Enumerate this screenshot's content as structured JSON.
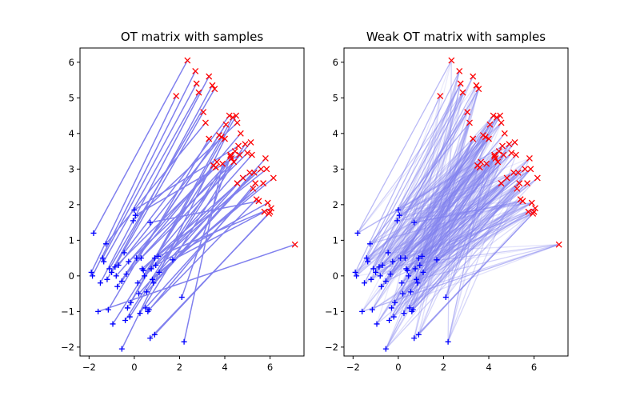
{
  "chart_data": [
    {
      "type": "scatter",
      "title": "OT matrix with samples",
      "xlabel": "",
      "ylabel": "",
      "xlim": [
        -2.4,
        7.5
      ],
      "ylim": [
        -2.25,
        6.4
      ],
      "xticks": [
        -2,
        0,
        2,
        4,
        6
      ],
      "xtick_labels": [
        "−2",
        "0",
        "2",
        "4",
        "6"
      ],
      "yticks": [
        -2,
        -1,
        0,
        1,
        2,
        3,
        4,
        5,
        6
      ],
      "ytick_labels": [
        "−2",
        "−1",
        "0",
        "1",
        "2",
        "3",
        "4",
        "5",
        "6"
      ],
      "grid": false,
      "mapping": "one-to-one",
      "line_color": "#8080ee",
      "source_color": "#0000ff",
      "target_color": "#ff0000",
      "source_marker": "plus",
      "target_marker": "x"
    },
    {
      "type": "scatter",
      "title": "Weak OT matrix with samples",
      "xlabel": "",
      "ylabel": "",
      "xlim": [
        -2.4,
        7.5
      ],
      "ylim": [
        -2.25,
        6.4
      ],
      "xticks": [
        -2,
        0,
        2,
        4,
        6
      ],
      "xtick_labels": [
        "−2",
        "0",
        "2",
        "4",
        "6"
      ],
      "yticks": [
        -2,
        -1,
        0,
        1,
        2,
        3,
        4,
        5,
        6
      ],
      "ytick_labels": [
        "−2",
        "−1",
        "0",
        "1",
        "2",
        "3",
        "4",
        "5",
        "6"
      ],
      "grid": false,
      "mapping": "weak",
      "line_color": "#8080ee",
      "source_color": "#0000ff",
      "target_color": "#ff0000",
      "source_marker": "plus",
      "target_marker": "x"
    }
  ],
  "samples": {
    "source": [
      [
        -1.8,
        1.2
      ],
      [
        -1.9,
        0.1
      ],
      [
        -1.85,
        0.0
      ],
      [
        -1.4,
        0.5
      ],
      [
        -1.35,
        0.4
      ],
      [
        -1.5,
        -0.2
      ],
      [
        -1.2,
        -0.1
      ],
      [
        -1.1,
        0.2
      ],
      [
        -1.0,
        0.1
      ],
      [
        -1.25,
        0.9
      ],
      [
        -1.15,
        -0.95
      ],
      [
        -0.95,
        -1.35
      ],
      [
        -0.85,
        0.25
      ],
      [
        -0.8,
        0.0
      ],
      [
        -0.75,
        -0.3
      ],
      [
        -0.7,
        0.3
      ],
      [
        -0.55,
        -2.05
      ],
      [
        -0.55,
        -0.15
      ],
      [
        -0.45,
        0.65
      ],
      [
        -0.4,
        -1.25
      ],
      [
        -0.35,
        0.05
      ],
      [
        -0.3,
        -0.9
      ],
      [
        -0.25,
        0.4
      ],
      [
        -0.2,
        -1.15
      ],
      [
        -0.15,
        -0.75
      ],
      [
        -0.05,
        1.55
      ],
      [
        0.0,
        1.85
      ],
      [
        0.05,
        1.7
      ],
      [
        0.1,
        0.5
      ],
      [
        0.15,
        -0.2
      ],
      [
        0.2,
        -0.5
      ],
      [
        0.25,
        -1.05
      ],
      [
        0.3,
        0.5
      ],
      [
        0.35,
        0.2
      ],
      [
        0.4,
        0.15
      ],
      [
        0.45,
        0.0
      ],
      [
        0.5,
        -0.9
      ],
      [
        0.55,
        -0.45
      ],
      [
        0.6,
        -1.0
      ],
      [
        0.65,
        -0.95
      ],
      [
        0.7,
        1.5
      ],
      [
        0.75,
        0.2
      ],
      [
        0.8,
        -0.1
      ],
      [
        0.85,
        -0.2
      ],
      [
        0.9,
        0.5
      ],
      [
        0.95,
        0.3
      ],
      [
        0.7,
        -1.75
      ],
      [
        0.9,
        -1.65
      ],
      [
        1.05,
        0.55
      ],
      [
        1.1,
        0.1
      ],
      [
        1.7,
        0.45
      ],
      [
        2.1,
        -0.6
      ],
      [
        2.2,
        -1.85
      ],
      [
        -1.6,
        -1.0
      ]
    ],
    "target": [
      [
        2.35,
        6.05
      ],
      [
        1.85,
        5.05
      ],
      [
        2.7,
        5.75
      ],
      [
        2.75,
        5.4
      ],
      [
        2.85,
        5.15
      ],
      [
        3.3,
        5.6
      ],
      [
        3.45,
        5.35
      ],
      [
        3.55,
        5.25
      ],
      [
        3.05,
        4.6
      ],
      [
        3.15,
        4.3
      ],
      [
        3.3,
        3.85
      ],
      [
        3.5,
        3.1
      ],
      [
        3.6,
        3.05
      ],
      [
        3.65,
        3.2
      ],
      [
        3.75,
        3.95
      ],
      [
        3.85,
        3.9
      ],
      [
        4.0,
        3.85
      ],
      [
        4.05,
        4.25
      ],
      [
        4.2,
        4.5
      ],
      [
        4.25,
        3.4
      ],
      [
        4.3,
        3.3
      ],
      [
        4.35,
        4.45
      ],
      [
        4.4,
        3.2
      ],
      [
        4.45,
        3.5
      ],
      [
        4.5,
        4.5
      ],
      [
        4.55,
        4.3
      ],
      [
        4.6,
        3.65
      ],
      [
        4.65,
        3.4
      ],
      [
        4.7,
        4.0
      ],
      [
        4.55,
        2.6
      ],
      [
        4.8,
        2.75
      ],
      [
        4.9,
        3.7
      ],
      [
        5.0,
        3.45
      ],
      [
        5.1,
        2.9
      ],
      [
        5.15,
        3.75
      ],
      [
        5.2,
        3.4
      ],
      [
        5.25,
        2.45
      ],
      [
        5.3,
        2.9
      ],
      [
        5.35,
        2.6
      ],
      [
        5.4,
        2.15
      ],
      [
        5.5,
        2.1
      ],
      [
        5.6,
        3.0
      ],
      [
        5.7,
        2.6
      ],
      [
        5.8,
        3.3
      ],
      [
        5.85,
        3.0
      ],
      [
        5.9,
        2.05
      ],
      [
        5.95,
        1.75
      ],
      [
        6.0,
        1.8
      ],
      [
        6.05,
        1.9
      ],
      [
        6.15,
        2.75
      ],
      [
        5.75,
        1.8
      ],
      [
        4.25,
        3.35
      ],
      [
        3.9,
        3.15
      ],
      [
        7.1,
        0.88
      ]
    ]
  }
}
